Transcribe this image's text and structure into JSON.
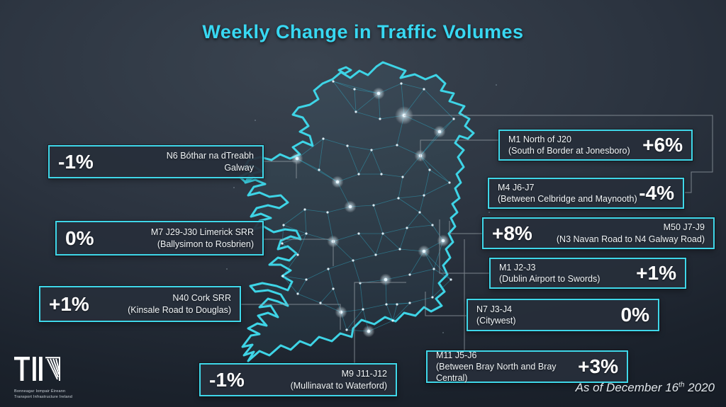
{
  "title": "Weekly Change in Traffic Volumes",
  "as_of": {
    "text": "As of December 16",
    "superscript": "th",
    "year": " 2020"
  },
  "logo": {
    "acronym": "TII",
    "org_irish": "Bonneagar Iompair Éireann",
    "org_english": "Transport Infrastructure Ireland"
  },
  "colors": {
    "accent_cyan": "#3fd7e9",
    "title_cyan": "#38d8f2",
    "coastline_cyan": "#3ed4e6",
    "value_text": "#ffffff",
    "background_dark": "#12171f"
  },
  "callouts": [
    {
      "id": "n6",
      "value": "-1%",
      "road": "N6 Bóthar na dTreabh",
      "detail": "Galway"
    },
    {
      "id": "m7",
      "value": "0%",
      "road": "M7 J29-J30 Limerick SRR",
      "detail": "(Ballysimon to Rosbrien)"
    },
    {
      "id": "n40",
      "value": "+1%",
      "road": "N40 Cork SRR",
      "detail": "(Kinsale Road to Douglas)"
    },
    {
      "id": "m9",
      "value": "-1%",
      "road": "M9 J11-J12",
      "detail": "(Mullinavat to Waterford)"
    },
    {
      "id": "m1n",
      "value": "+6%",
      "road": "M1 North of J20",
      "detail": "(South of Border at Jonesboro)"
    },
    {
      "id": "m4",
      "value": "-4%",
      "road": "M4 J6-J7",
      "detail": "(Between Celbridge and Maynooth)"
    },
    {
      "id": "m50",
      "value": "+8%",
      "road": "M50 J7-J9",
      "detail": "(N3 Navan Road to N4 Galway Road)"
    },
    {
      "id": "m1d",
      "value": "+1%",
      "road": "M1 J2-J3",
      "detail": "(Dublin Airport to Swords)"
    },
    {
      "id": "n7",
      "value": "0%",
      "road": "N7 J3-J4",
      "detail": "(Citywest)"
    },
    {
      "id": "m11",
      "value": "+3%",
      "road": "M11 J5-J6",
      "detail": "(Between Bray North and Bray Central)"
    }
  ]
}
